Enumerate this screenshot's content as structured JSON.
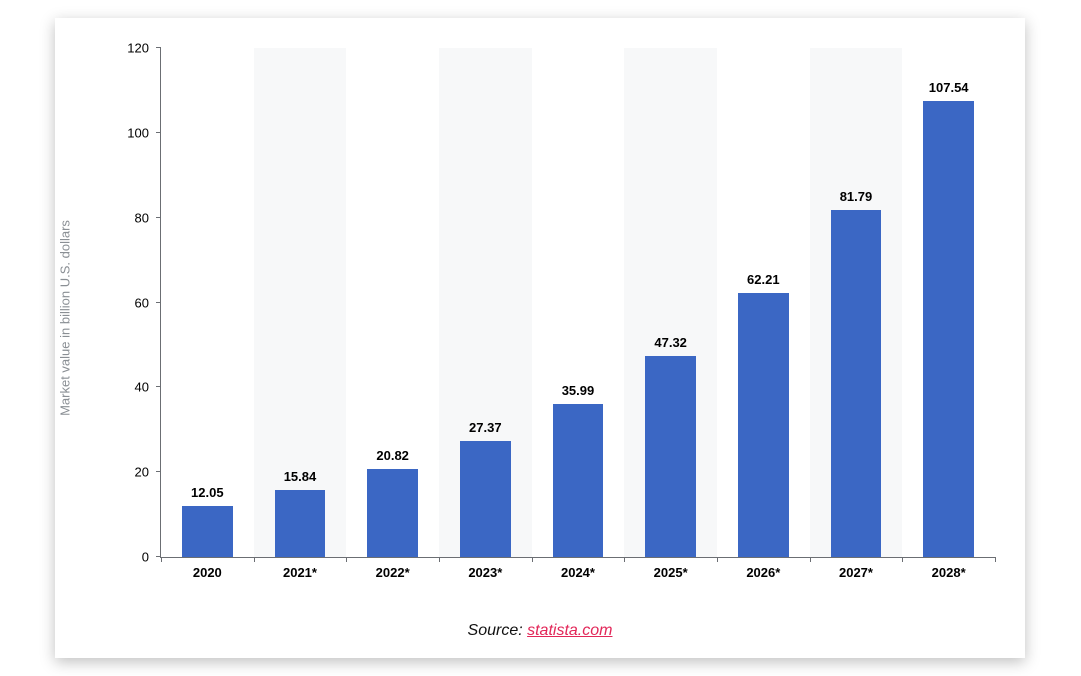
{
  "chart": {
    "type": "bar",
    "categories": [
      "2020",
      "2021*",
      "2022*",
      "2023*",
      "2024*",
      "2025*",
      "2026*",
      "2027*",
      "2028*"
    ],
    "values": [
      12.05,
      15.84,
      20.82,
      27.37,
      35.99,
      47.32,
      62.21,
      81.79,
      107.54
    ],
    "value_labels": [
      "12.05",
      "15.84",
      "20.82",
      "27.37",
      "35.99",
      "47.32",
      "62.21",
      "81.79",
      "107.54"
    ],
    "bar_color": "#3b67c4",
    "alt_band_color": "#f7f8f9",
    "background_color": "#ffffff",
    "axis_color": "#6b6e73",
    "yaxis_title": "Market value in billion U.S. dollars",
    "yaxis_title_color": "#8a8f94",
    "ylim": [
      0,
      120
    ],
    "ytick_step": 20,
    "y_ticks": [
      0,
      20,
      40,
      60,
      80,
      100,
      120
    ],
    "label_fontsize": 13,
    "axis_title_fontsize": 13,
    "bar_width": 0.55
  },
  "source": {
    "prefix": "Source: ",
    "link_text": "statista.com",
    "link_color": "#e22658"
  }
}
